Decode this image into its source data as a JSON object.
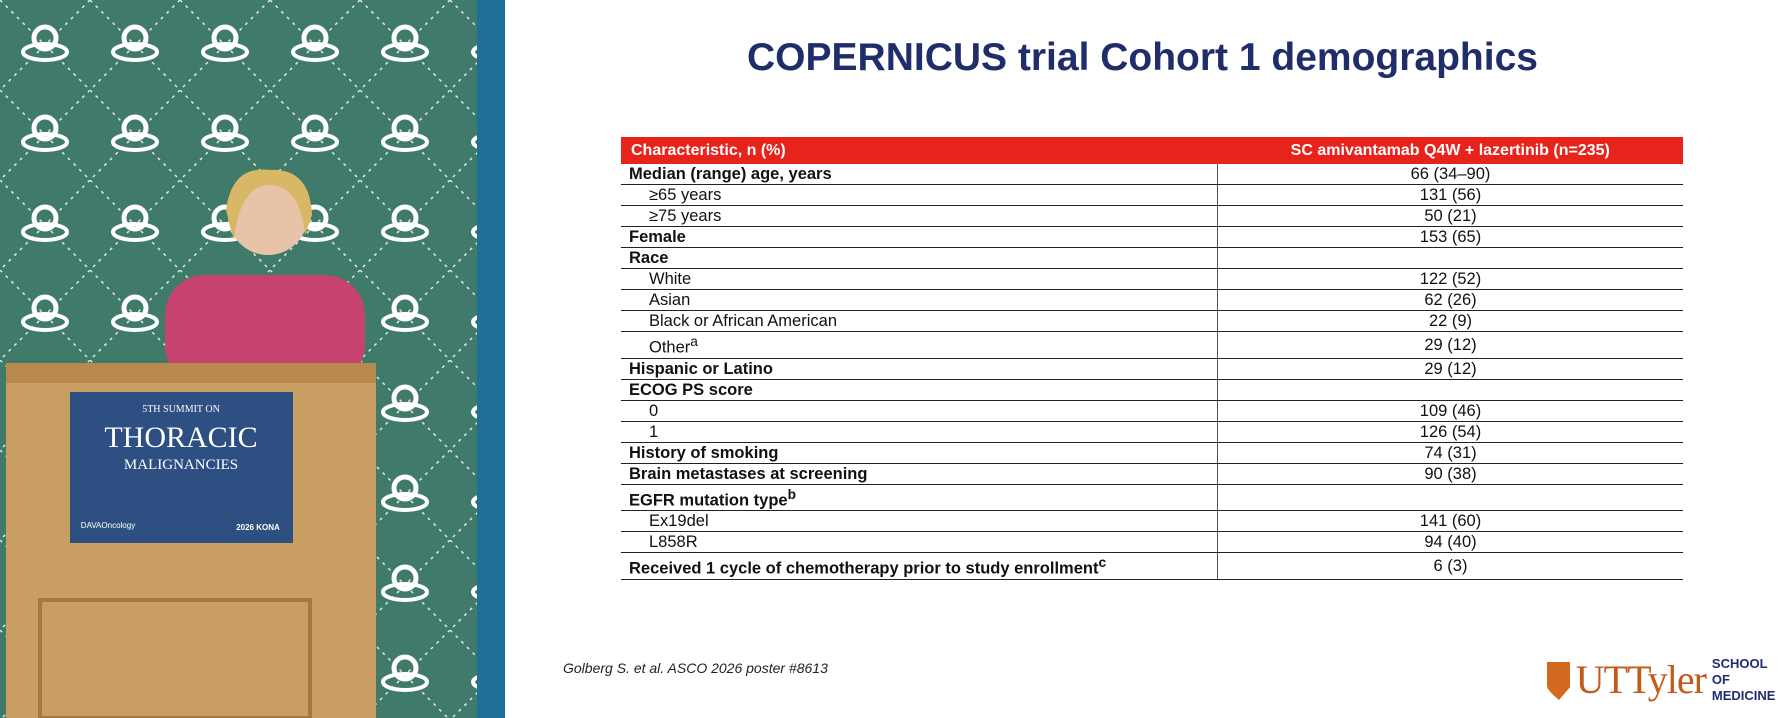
{
  "slide": {
    "title": "COPERNICUS trial Cohort 1 demographics",
    "table": {
      "header": [
        "Characteristic, n (%)",
        "SC amivantamab Q4W + lazertinib (n=235)"
      ],
      "rows": [
        {
          "label": "Median (range) age, years",
          "value": "66 (34–90)",
          "indent": false
        },
        {
          "label": "≥65 years",
          "value": "131 (56)",
          "indent": true
        },
        {
          "label": "≥75 years",
          "value": "50 (21)",
          "indent": true
        },
        {
          "label": "Female",
          "value": "153 (65)",
          "indent": false
        },
        {
          "label": "Race",
          "value": null,
          "indent": false
        },
        {
          "label": "White",
          "value": "122 (52)",
          "indent": true
        },
        {
          "label": "Asian",
          "value": "62 (26)",
          "indent": true
        },
        {
          "label": "Black or African American",
          "value": "22 (9)",
          "indent": true
        },
        {
          "label": "Other",
          "note": "a",
          "value": "29 (12)",
          "indent": true
        },
        {
          "label": "Hispanic or Latino",
          "value": "29 (12)",
          "indent": false
        },
        {
          "label": "ECOG PS score",
          "value": null,
          "indent": false
        },
        {
          "label": "0",
          "value": "109 (46)",
          "indent": true
        },
        {
          "label": "1",
          "value": "126 (54)",
          "indent": true
        },
        {
          "label": "History of smoking",
          "value": "74 (31)",
          "indent": false
        },
        {
          "label": "Brain metastases at screening",
          "value": "90 (38)",
          "indent": false
        },
        {
          "label": "EGFR mutation type",
          "note": "b",
          "value": null,
          "indent": false
        },
        {
          "label": "Ex19del",
          "value": "141 (60)",
          "indent": true
        },
        {
          "label": "L858R",
          "value": "94 (40)",
          "indent": true
        },
        {
          "label": "Received 1 cycle of chemotherapy prior to study enrollment",
          "note": "c",
          "value": "6 (3)",
          "indent": false
        }
      ]
    },
    "citation": "Golberg S. et al. ASCO 2026 poster #8613",
    "logo": {
      "name": "UTTyler",
      "line1": "SCHOOL OF",
      "line2": "MEDICINE"
    }
  },
  "video": {
    "podium_sign": {
      "line1": "5TH SUMMIT ON",
      "line2": "THORACIC",
      "line3": "MALIGNANCIES",
      "brand": "DAVAOncology",
      "event": "2026 KONA"
    }
  }
}
